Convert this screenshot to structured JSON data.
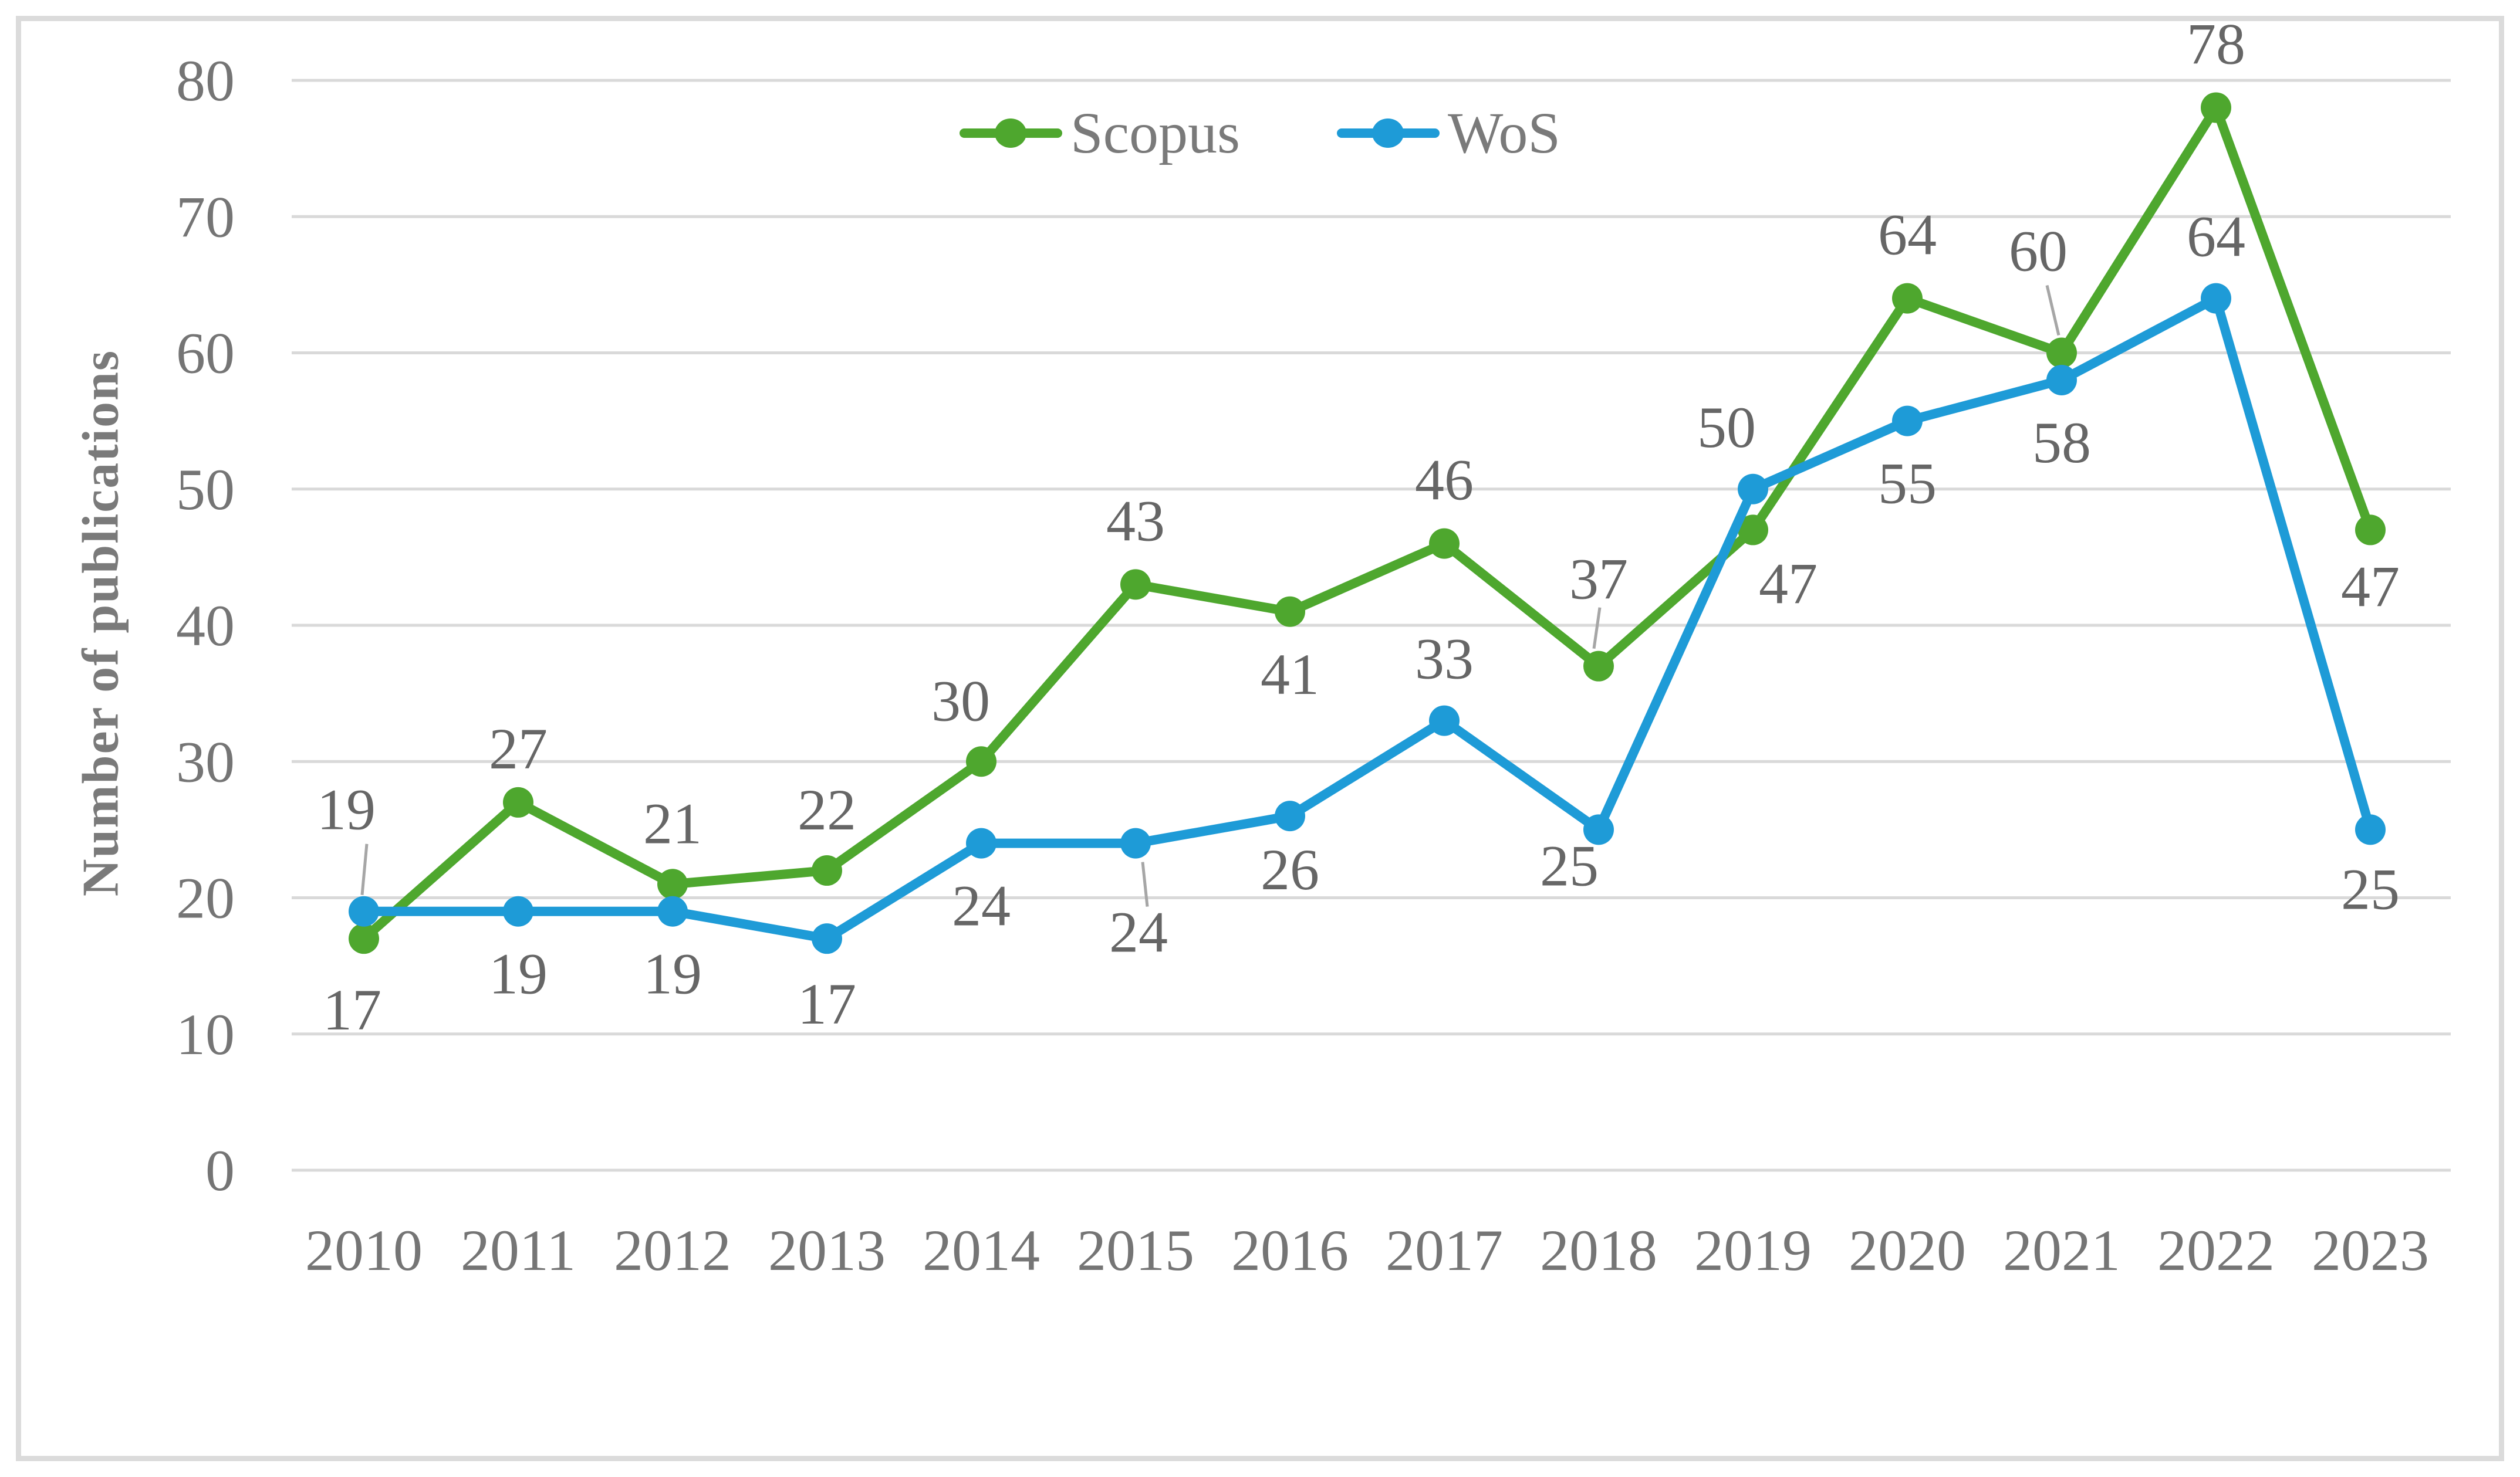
{
  "colors": {
    "scopus": "#4EA72E",
    "wos": "#1E9BD7",
    "grid": "#d9d9d9",
    "frame_border": "#dbdbdb",
    "tick_label": "#757575",
    "data_label": "#666666",
    "legend_text": "#7a7a7a",
    "axis_title": "#7a7a7a",
    "leader_line": "#a6a6a6"
  },
  "legend": {
    "items": [
      {
        "label": "Scopus"
      },
      {
        "label": "WoS"
      }
    ]
  },
  "chart_data": {
    "type": "line",
    "title": "",
    "xlabel": "",
    "ylabel": "Number of publications",
    "ylim": [
      0,
      80
    ],
    "ytick_step": 10,
    "grid": true,
    "legend_position": "top-center",
    "categories": [
      "2010",
      "2011",
      "2012",
      "2013",
      "2014",
      "2015",
      "2016",
      "2017",
      "2018",
      "2019",
      "2020",
      "2021",
      "2022",
      "2023"
    ],
    "series": [
      {
        "name": "Scopus",
        "color": "#4EA72E",
        "values": [
          17,
          27,
          21,
          22,
          30,
          43,
          41,
          46,
          37,
          47,
          64,
          60,
          78,
          47
        ],
        "labels": [
          {
            "dx": -20,
            "dy": 155
          },
          {
            "dx": 0,
            "dy": -58
          },
          {
            "dx": 0,
            "dy": -70
          },
          {
            "dx": 0,
            "dy": -70
          },
          {
            "dx": -35,
            "dy": -70
          },
          {
            "dx": 0,
            "dy": -75
          },
          {
            "dx": 0,
            "dy": 140
          },
          {
            "dx": 0,
            "dy": -75
          },
          {
            "dx": 0,
            "dy": -115,
            "leader": [
              2,
              -100,
              -8,
              -30
            ]
          },
          {
            "dx": 60,
            "dy": 125
          },
          {
            "dx": 0,
            "dy": -75
          },
          {
            "dx": -40,
            "dy": -140,
            "leader": [
              -25,
              -115,
              -5,
              -30
            ]
          },
          {
            "dx": 0,
            "dy": -75
          },
          {
            "dx": 0,
            "dy": 130
          }
        ]
      },
      {
        "name": "WoS",
        "color": "#1E9BD7",
        "values": [
          19,
          19,
          19,
          17,
          24,
          24,
          26,
          33,
          25,
          50,
          55,
          58,
          64,
          25
        ],
        "labels": [
          {
            "dx": -30,
            "dy": -140,
            "leader": [
              5,
              -115,
              -3,
              -28
            ]
          },
          {
            "dx": 0,
            "dy": 140
          },
          {
            "dx": 0,
            "dy": 140
          },
          {
            "dx": 0,
            "dy": 145
          },
          {
            "dx": 0,
            "dy": 140
          },
          {
            "dx": 5,
            "dy": 185,
            "leader": [
              12,
              32,
              20,
              108
            ]
          },
          {
            "dx": 0,
            "dy": 125
          },
          {
            "dx": 0,
            "dy": -72
          },
          {
            "dx": -50,
            "dy": 95
          },
          {
            "dx": -45,
            "dy": -72
          },
          {
            "dx": 0,
            "dy": 140
          },
          {
            "dx": 0,
            "dy": 140
          },
          {
            "dx": 0,
            "dy": -72
          },
          {
            "dx": 0,
            "dy": 135
          }
        ]
      }
    ]
  }
}
